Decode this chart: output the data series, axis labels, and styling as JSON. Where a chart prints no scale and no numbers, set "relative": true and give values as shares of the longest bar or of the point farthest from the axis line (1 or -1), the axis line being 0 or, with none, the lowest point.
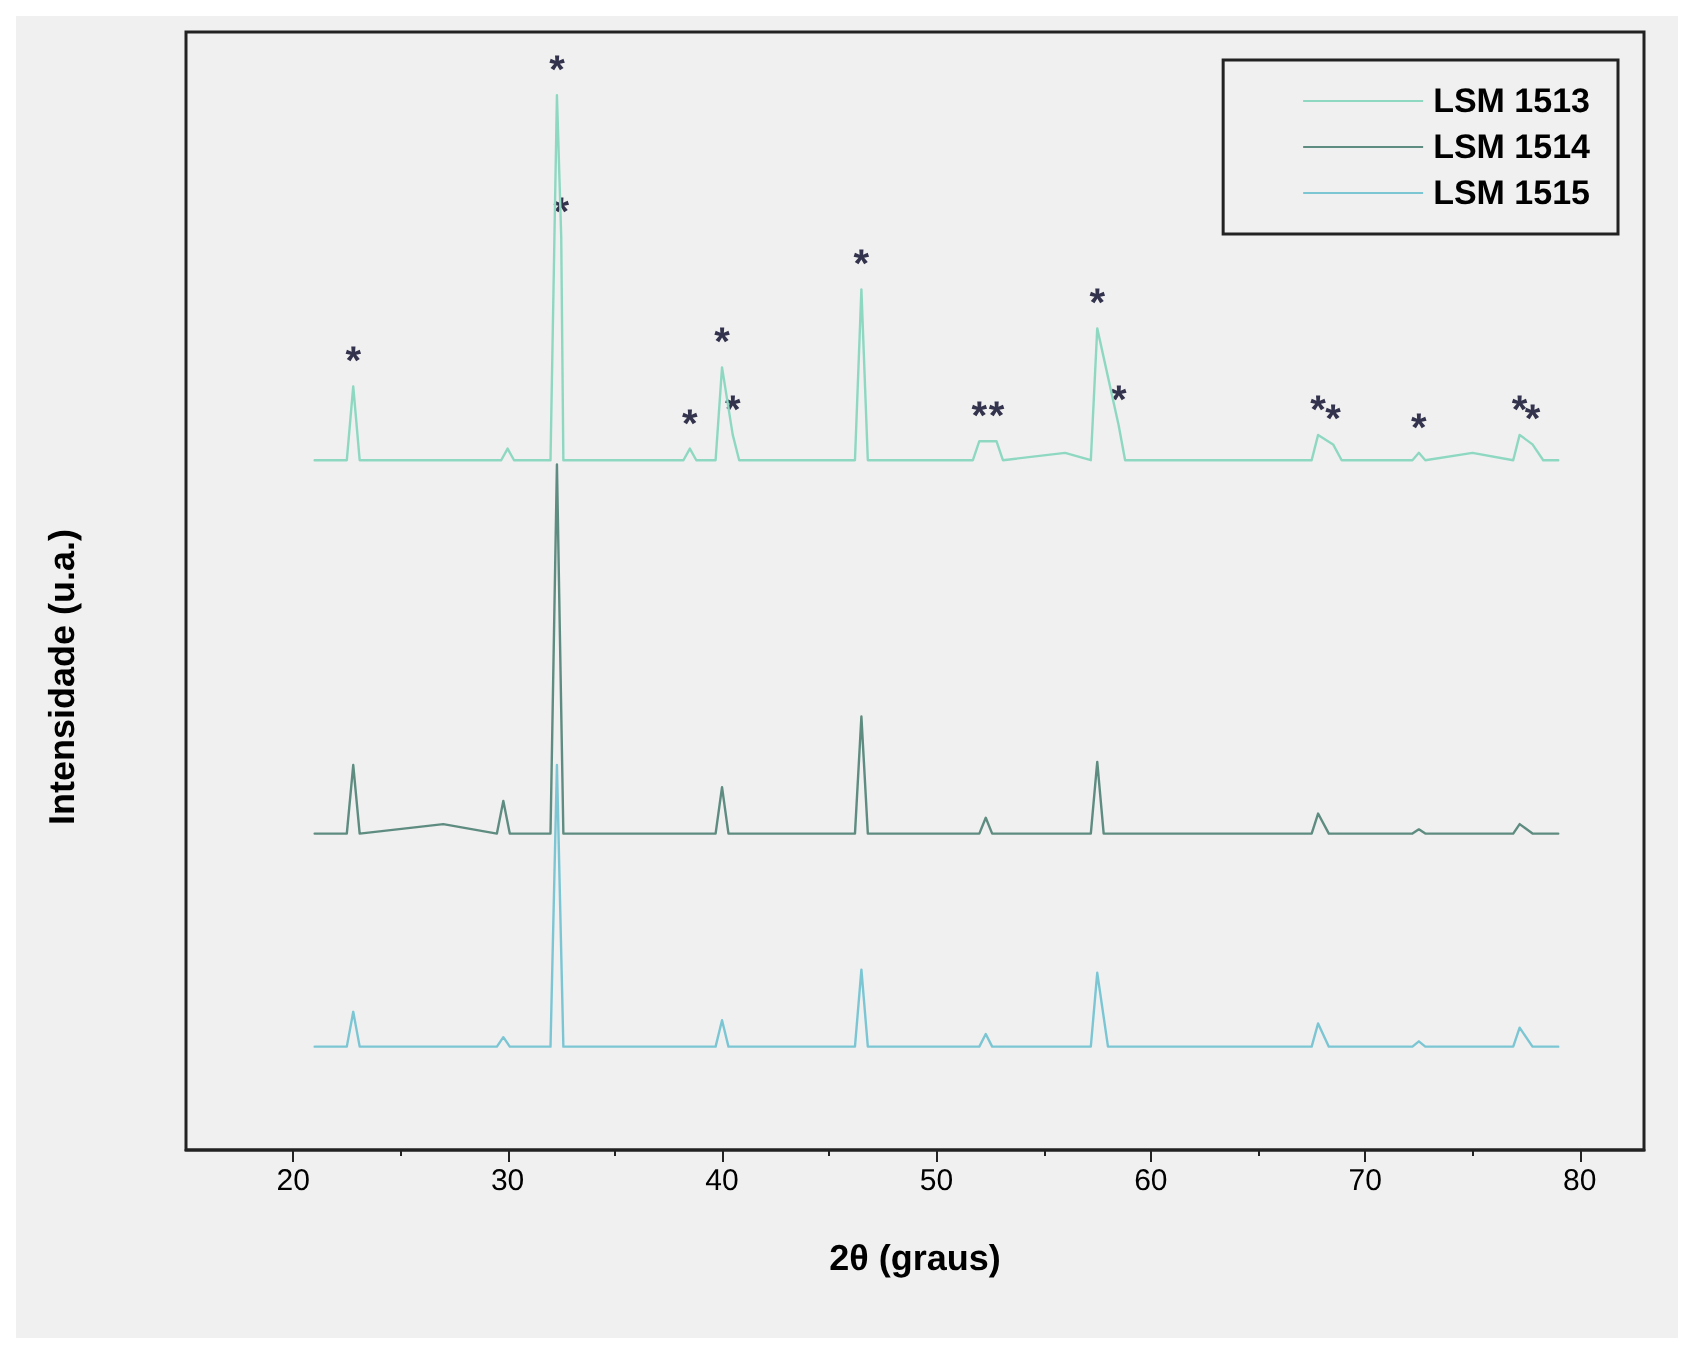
{
  "chart_data": {
    "type": "line",
    "relative": true,
    "xlabel": "2θ (graus)",
    "ylabel": "Intensidade (u.a.)",
    "xlim": [
      15,
      83
    ],
    "xticks": [
      20,
      30,
      40,
      50,
      60,
      70,
      80
    ],
    "legend": "top right",
    "marker": "none",
    "series": [
      {
        "name": "LSM 1513",
        "color": "#8ed8c2",
        "x": [
          21,
          22.5,
          22.8,
          23.1,
          29.7,
          30,
          30.3,
          32,
          32.3,
          32.5,
          32.6,
          38.2,
          38.5,
          38.8,
          39.7,
          40,
          40.5,
          40.8,
          46.2,
          46.5,
          46.8,
          51.7,
          52,
          52.8,
          53.1,
          56,
          57.2,
          57.5,
          58.5,
          58.8,
          67.5,
          67.8,
          68.5,
          68.9,
          72.2,
          72.5,
          72.8,
          75,
          76.9,
          77.2,
          77.8,
          78.3,
          79
        ],
        "values": [
          0.654,
          0.654,
          0.724,
          0.654,
          0.654,
          0.665,
          0.654,
          0.654,
          1.0,
          0.866,
          0.654,
          0.654,
          0.665,
          0.654,
          0.654,
          0.742,
          0.678,
          0.654,
          0.654,
          0.816,
          0.654,
          0.654,
          0.672,
          0.672,
          0.654,
          0.661,
          0.654,
          0.779,
          0.687,
          0.654,
          0.654,
          0.678,
          0.669,
          0.654,
          0.654,
          0.661,
          0.654,
          0.661,
          0.654,
          0.678,
          0.669,
          0.654,
          0.654
        ]
      },
      {
        "name": "LSM 1514",
        "color": "#5f8c80",
        "x": [
          21,
          22.5,
          22.8,
          23.1,
          27,
          29.5,
          29.8,
          30.1,
          32,
          32.3,
          32.6,
          39.7,
          40,
          40.3,
          46.2,
          46.5,
          46.8,
          52,
          52.3,
          52.6,
          57.2,
          57.5,
          57.8,
          67.5,
          67.8,
          68.3,
          72.2,
          72.5,
          72.8,
          76.9,
          77.2,
          77.8,
          79
        ],
        "values": [
          0.3,
          0.3,
          0.365,
          0.3,
          0.309,
          0.3,
          0.331,
          0.3,
          0.3,
          0.65,
          0.3,
          0.3,
          0.344,
          0.3,
          0.3,
          0.411,
          0.3,
          0.3,
          0.315,
          0.3,
          0.3,
          0.368,
          0.3,
          0.3,
          0.319,
          0.3,
          0.3,
          0.304,
          0.3,
          0.3,
          0.309,
          0.3,
          0.3
        ]
      },
      {
        "name": "LSM 1515",
        "color": "#7cc6d4",
        "x": [
          21,
          22.5,
          22.8,
          23.1,
          29.5,
          29.8,
          30.1,
          32,
          32.3,
          32.6,
          39.7,
          40,
          40.3,
          46.2,
          46.5,
          46.8,
          52,
          52.3,
          52.6,
          57.2,
          57.5,
          58,
          67.5,
          67.8,
          68.3,
          72.2,
          72.5,
          72.8,
          76.9,
          77.2,
          77.8,
          79
        ],
        "values": [
          0.098,
          0.098,
          0.131,
          0.098,
          0.098,
          0.107,
          0.098,
          0.098,
          0.365,
          0.098,
          0.098,
          0.123,
          0.098,
          0.098,
          0.171,
          0.098,
          0.098,
          0.11,
          0.098,
          0.098,
          0.168,
          0.098,
          0.098,
          0.12,
          0.098,
          0.098,
          0.103,
          0.098,
          0.098,
          0.116,
          0.098,
          0.098
        ]
      }
    ],
    "annotations": [
      {
        "text": "*",
        "x": 22.8,
        "y": 0.724
      },
      {
        "text": "*",
        "x": 32.3,
        "y": 1.0
      },
      {
        "text": "*",
        "x": 32.5,
        "y": 0.866
      },
      {
        "text": "*",
        "x": 38.5,
        "y": 0.665
      },
      {
        "text": "*",
        "x": 40,
        "y": 0.742
      },
      {
        "text": "*",
        "x": 40.5,
        "y": 0.678
      },
      {
        "text": "*",
        "x": 46.5,
        "y": 0.816
      },
      {
        "text": "*",
        "x": 52,
        "y": 0.672
      },
      {
        "text": "*",
        "x": 52.8,
        "y": 0.672
      },
      {
        "text": "*",
        "x": 57.5,
        "y": 0.779
      },
      {
        "text": "*",
        "x": 58.5,
        "y": 0.687
      },
      {
        "text": "*",
        "x": 67.8,
        "y": 0.678
      },
      {
        "text": "*",
        "x": 68.5,
        "y": 0.669
      },
      {
        "text": "*",
        "x": 72.5,
        "y": 0.661
      },
      {
        "text": "*",
        "x": 77.2,
        "y": 0.678
      },
      {
        "text": "*",
        "x": 77.8,
        "y": 0.669
      }
    ]
  }
}
